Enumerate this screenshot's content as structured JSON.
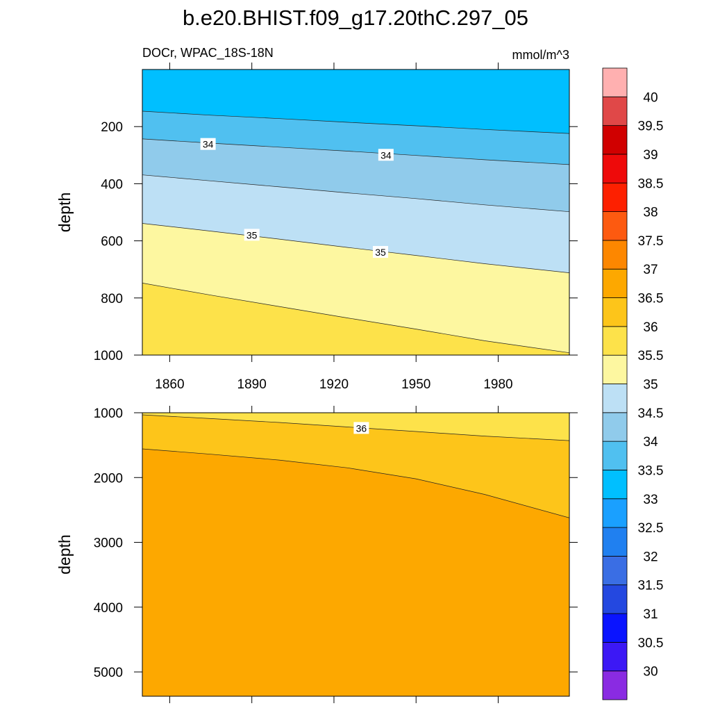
{
  "chart_data": [
    {
      "type": "contour",
      "title": "b.e20.BHIST.f09_g17.20thC.297_05",
      "left_string": "DOCr, WPAC_18S-18N",
      "right_string": "mmol/m^3",
      "ylabel": "depth",
      "xlim": [
        1850,
        2006
      ],
      "xticks": [
        1860,
        1890,
        1920,
        1950,
        1980
      ],
      "ylim": [
        0,
        1000
      ],
      "yticks": [
        200,
        400,
        600,
        800,
        1000
      ],
      "y_reversed": true,
      "show_xtick_labels": true,
      "contours": [
        {
          "level": 33.5,
          "x": [
            1850,
            1875,
            1900,
            1925,
            1950,
            1975,
            2006
          ],
          "depth": [
            146,
            160,
            172,
            185,
            197,
            210,
            224
          ]
        },
        {
          "level": 34,
          "x": [
            1850,
            1875,
            1900,
            1925,
            1950,
            1975,
            2006
          ],
          "depth": [
            243,
            258,
            272,
            286,
            301,
            316,
            333
          ]
        },
        {
          "level": 34.5,
          "x": [
            1850,
            1875,
            1900,
            1925,
            1950,
            1975,
            2006
          ],
          "depth": [
            369,
            390,
            411,
            432,
            452,
            474,
            498
          ]
        },
        {
          "level": 35,
          "x": [
            1850,
            1875,
            1900,
            1925,
            1950,
            1975,
            2006
          ],
          "depth": [
            539,
            566,
            594,
            623,
            651,
            680,
            712
          ]
        },
        {
          "level": 35.5,
          "x": [
            1850,
            1875,
            1900,
            1925,
            1950,
            1975,
            2006
          ],
          "depth": [
            748,
            790,
            830,
            870,
            909,
            950,
            992
          ]
        }
      ],
      "labels": [
        {
          "text": "34",
          "x": 1874,
          "depth": 262
        },
        {
          "text": "34",
          "x": 1939,
          "depth": 300
        },
        {
          "text": "35",
          "x": 1890,
          "depth": 580
        },
        {
          "text": "35",
          "x": 1937,
          "depth": 640
        }
      ]
    },
    {
      "type": "contour",
      "ylabel": "depth",
      "xlim": [
        1850,
        2006
      ],
      "xticks": [
        1860,
        1890,
        1920,
        1950,
        1980
      ],
      "ylim": [
        1000,
        5375
      ],
      "yticks": [
        1000,
        2000,
        3000,
        4000,
        5000
      ],
      "y_reversed": true,
      "show_xtick_labels": false,
      "contours": [
        {
          "level": 36,
          "x": [
            1850,
            1875,
            1900,
            1925,
            1950,
            1975,
            2006
          ],
          "depth": [
            1032,
            1090,
            1150,
            1220,
            1290,
            1360,
            1430
          ]
        },
        {
          "level": 36.5,
          "x": [
            1850,
            1875,
            1900,
            1925,
            1950,
            1975,
            2006
          ],
          "depth": [
            1558,
            1640,
            1730,
            1850,
            2020,
            2260,
            2622
          ]
        }
      ],
      "labels": [
        {
          "text": "36",
          "x": 1930,
          "depth": 1240
        }
      ]
    }
  ],
  "colorbar": {
    "levels": [
      30,
      30.5,
      31,
      31.5,
      32,
      32.5,
      33,
      33.5,
      34,
      34.5,
      35,
      35.5,
      36,
      36.5,
      37,
      37.5,
      38,
      38.5,
      39,
      39.5,
      40
    ],
    "colors": [
      "#8a2be2",
      "#3c18f5",
      "#0a14ff",
      "#2448e0",
      "#3a6ee4",
      "#2080f0",
      "#1aa0ff",
      "#00bfff",
      "#50c0f0",
      "#90cbeb",
      "#bde0f5",
      "#fdf7a0",
      "#fde24a",
      "#fdc51a",
      "#fda800",
      "#fd8700",
      "#fd5a10",
      "#fd2000",
      "#ee0a0a",
      "#d00000",
      "#e04848",
      "#ffb0b0"
    ]
  }
}
